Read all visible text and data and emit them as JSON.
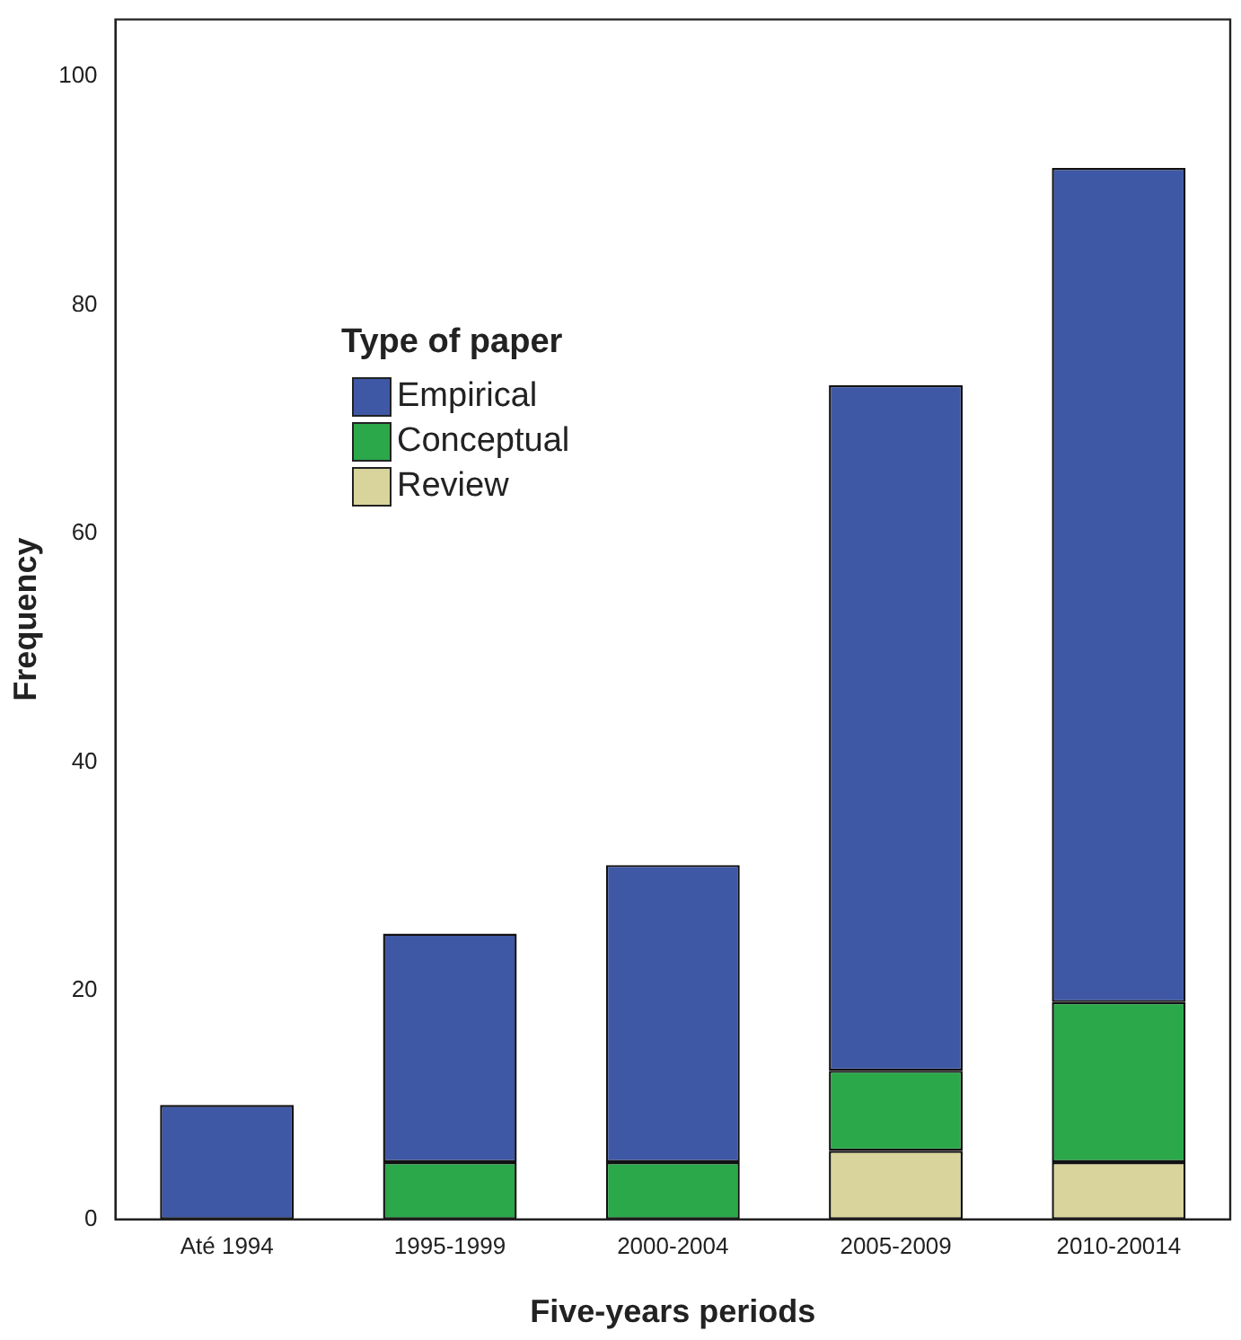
{
  "chart_data": {
    "type": "bar",
    "stacked": true,
    "xlabel": "Five-years periods",
    "ylabel": "Frequency",
    "legend_title": "Type of paper",
    "legend": "top left",
    "grid": false,
    "categories": [
      "Até 1994",
      "1995-1999",
      "2000-2004",
      "2005-2009",
      "2010-20014"
    ],
    "series": [
      {
        "name": "Review",
        "color": "#d8d49c",
        "values": [
          0,
          0,
          0,
          6,
          5
        ]
      },
      {
        "name": "Conceptual",
        "color": "#2aa84a",
        "values": [
          0,
          5,
          5,
          7,
          14
        ]
      },
      {
        "name": "Empirical",
        "color": "#3f58a6",
        "values": [
          10,
          20,
          26,
          60,
          73
        ]
      }
    ],
    "ylim": [
      0,
      105
    ],
    "yticks": [
      0,
      20,
      40,
      60,
      80,
      100
    ]
  }
}
